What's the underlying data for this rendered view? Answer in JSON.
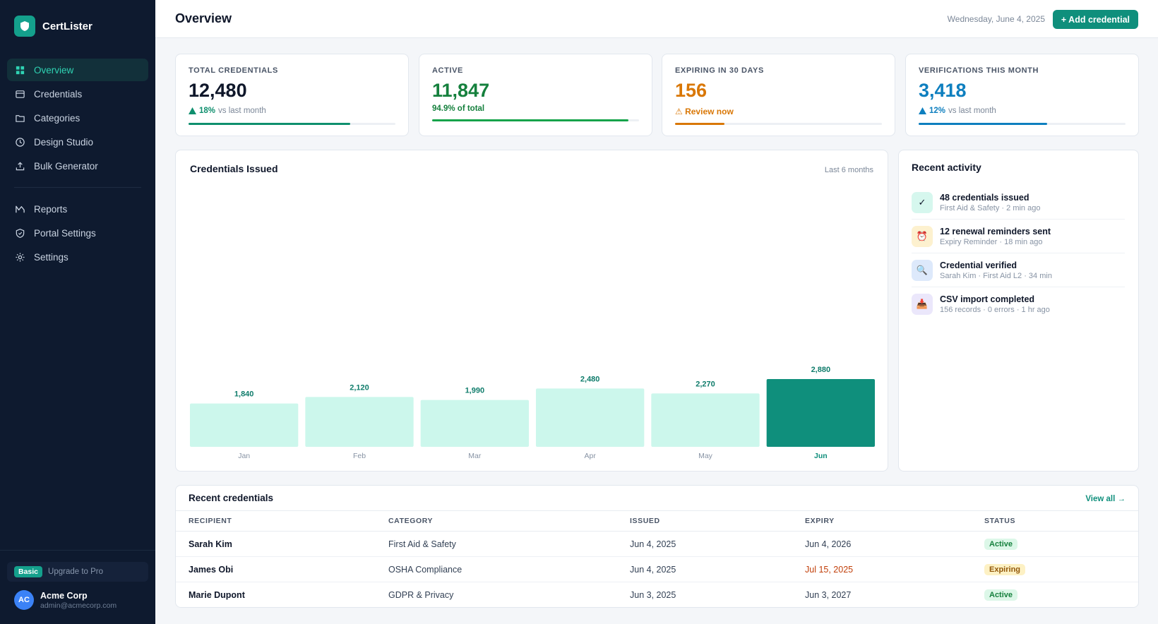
{
  "app": {
    "name": "CertLister"
  },
  "sidebar": {
    "items": [
      {
        "label": "Overview",
        "icon": "grid-icon",
        "active": true
      },
      {
        "label": "Credentials",
        "icon": "card-icon"
      },
      {
        "label": "Categories",
        "icon": "folder-icon"
      },
      {
        "label": "Design Studio",
        "icon": "palette-icon"
      },
      {
        "label": "Bulk Generator",
        "icon": "upload-icon"
      }
    ],
    "items2": [
      {
        "label": "Reports",
        "icon": "chart-icon"
      },
      {
        "label": "Portal Settings",
        "icon": "shield-icon"
      },
      {
        "label": "Settings",
        "icon": "gear-icon"
      }
    ],
    "plan": {
      "badge": "Basic",
      "upgrade": "Upgrade to Pro"
    },
    "user": {
      "initials": "AC",
      "name": "Acme Corp",
      "email": "admin@acmecorp.com"
    }
  },
  "header": {
    "title": "Overview",
    "date": "Wednesday, June 4, 2025",
    "add_button": "+ Add credential"
  },
  "kpis": [
    {
      "label": "TOTAL CREDENTIALS",
      "value": "12,480",
      "delta": "18%",
      "delta_note": "vs last month",
      "progress": 0.78,
      "color": "#0f8f6e"
    },
    {
      "label": "ACTIVE",
      "value": "11,847",
      "note": "94.9% of total",
      "progress": 0.949,
      "color": "#16a34a"
    },
    {
      "label": "EXPIRING IN 30 DAYS",
      "value": "156",
      "note": "⚠ Review now",
      "progress": 0.24,
      "color": "#d97706"
    },
    {
      "label": "VERIFICATIONS THIS MONTH",
      "value": "3,418",
      "delta": "12%",
      "delta_note": "vs last month",
      "progress": 0.62,
      "color": "#0e7fbf"
    }
  ],
  "chart": {
    "title": "Credentials Issued",
    "range": "Last 6 months"
  },
  "chart_data": {
    "type": "bar",
    "categories": [
      "Jan",
      "Feb",
      "Mar",
      "Apr",
      "May",
      "Jun"
    ],
    "values": [
      1840,
      2120,
      1990,
      2480,
      2270,
      2880
    ],
    "value_labels": [
      "1,840",
      "2,120",
      "1,990",
      "2,480",
      "2,270",
      "2,880"
    ],
    "highlight": "Jun",
    "colors": {
      "bar": "#ccf7ec",
      "highlight": "#0f8f7c",
      "label": "#0f7c6b"
    },
    "grid": false
  },
  "activity": {
    "title": "Recent activity",
    "items": [
      {
        "icon": "check-icon",
        "glyph": "✓",
        "bg": "#d6f7ee",
        "title": "48 credentials issued",
        "meta": "First Aid & Safety · 2 min ago"
      },
      {
        "icon": "alarm-icon",
        "glyph": "⏰",
        "bg": "#fdf1cf",
        "title": "12 renewal reminders sent",
        "meta": "Expiry Reminder · 18 min ago"
      },
      {
        "icon": "magnifier-icon",
        "glyph": "🔍",
        "bg": "#dde9fb",
        "title": "Credential verified",
        "meta": "Sarah Kim · First Aid L2 · 34 min"
      },
      {
        "icon": "import-icon",
        "glyph": "📥",
        "bg": "#ebe7fb",
        "title": "CSV import completed",
        "meta": "156 records · 0 errors · 1 hr ago"
      }
    ]
  },
  "table": {
    "title": "Recent credentials",
    "view_all": "View all →",
    "columns": [
      "RECIPIENT",
      "CATEGORY",
      "ISSUED",
      "EXPIRY",
      "STATUS"
    ],
    "rows": [
      {
        "recipient": "Sarah Kim",
        "category": "First Aid & Safety",
        "issued": "Jun 4, 2025",
        "expiry": "Jun 4, 2026",
        "status": "Active",
        "warn": false
      },
      {
        "recipient": "James Obi",
        "category": "OSHA Compliance",
        "issued": "Jun 4, 2025",
        "expiry": "Jul 15, 2025",
        "status": "Expiring",
        "warn": true
      },
      {
        "recipient": "Marie Dupont",
        "category": "GDPR & Privacy",
        "issued": "Jun 3, 2025",
        "expiry": "Jun 3, 2027",
        "status": "Active",
        "warn": false
      }
    ]
  }
}
